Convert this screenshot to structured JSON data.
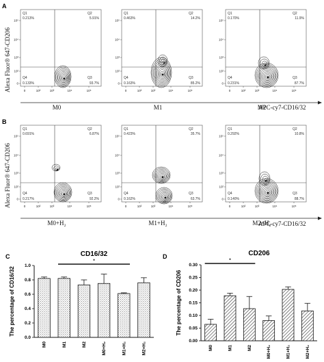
{
  "figure": {
    "panel_letters": [
      "A",
      "B",
      "C",
      "D"
    ],
    "y_axis_label": "Alexa Fluor® 647-CD206",
    "x_axis_label": "APC-cy7-CD16/32",
    "log_tick_labels": [
      "0",
      "10²",
      "10³",
      "10⁴",
      "10⁵"
    ],
    "quadrant_names": [
      "Q1",
      "Q2",
      "Q3",
      "Q4"
    ]
  },
  "chart_data": [
    {
      "type": "scatter",
      "panel": "A",
      "plots": [
        {
          "name": "M0",
          "quadrants": {
            "Q1": "0.213%",
            "Q2": "5.91%",
            "Q3": "93.7%",
            "Q4": "0.133%"
          }
        },
        {
          "name": "M1",
          "quadrants": {
            "Q1": "0.463%",
            "Q2": "14.2%",
            "Q3": "85.2%",
            "Q4": "0.163%"
          }
        },
        {
          "name": "M2",
          "quadrants": {
            "Q1": "0.170%",
            "Q2": "11.9%",
            "Q3": "87.7%",
            "Q4": "0.231%"
          }
        }
      ]
    },
    {
      "type": "scatter",
      "panel": "B",
      "plots": [
        {
          "name": "M0+H₂",
          "quadrants": {
            "Q1": "0.691%",
            "Q2": "6.87%",
            "Q3": "92.2%",
            "Q4": "0.217%"
          }
        },
        {
          "name": "M1+H₂",
          "quadrants": {
            "Q1": "0.423%",
            "Q2": "35.7%",
            "Q3": "63.7%",
            "Q4": "0.162%"
          }
        },
        {
          "name": "M2+H₂",
          "quadrants": {
            "Q1": "0.292%",
            "Q2": "10.8%",
            "Q3": "88.7%",
            "Q4": "0.140%"
          }
        }
      ]
    },
    {
      "type": "bar",
      "panel": "C",
      "title": "CD16/32",
      "ylabel": "The percentage of CD16/32",
      "categories": [
        "M0",
        "M1",
        "M2",
        "M0+H₂",
        "M1+H₂",
        "M2+H₂"
      ],
      "values": [
        0.82,
        0.82,
        0.73,
        0.75,
        0.61,
        0.76
      ],
      "errors": [
        0.02,
        0.02,
        0.07,
        0.13,
        0.01,
        0.07
      ],
      "ylim": [
        0.0,
        1.0
      ],
      "yticks": [
        "0.0",
        "0.2",
        "0.4",
        "0.6",
        "0.8",
        "1.0"
      ],
      "significance": {
        "label": "*",
        "from": "M1",
        "to": "M1+H₂"
      }
    },
    {
      "type": "bar",
      "panel": "D",
      "title": "CD206",
      "ylabel": "The percentage of CD206",
      "categories": [
        "M0",
        "M1",
        "M2",
        "M0+H₂",
        "M1+H₂",
        "M2+H₂"
      ],
      "values": [
        0.065,
        0.178,
        0.127,
        0.08,
        0.203,
        0.118
      ],
      "errors": [
        0.02,
        0.01,
        0.048,
        0.018,
        0.01,
        0.03
      ],
      "ylim": [
        0.0,
        0.3
      ],
      "yticks": [
        "0.00",
        "0.05",
        "0.10",
        "0.15",
        "0.20",
        "0.25",
        "0.30"
      ],
      "significance": {
        "label": "*",
        "from": "M0",
        "to": "M2"
      }
    }
  ]
}
